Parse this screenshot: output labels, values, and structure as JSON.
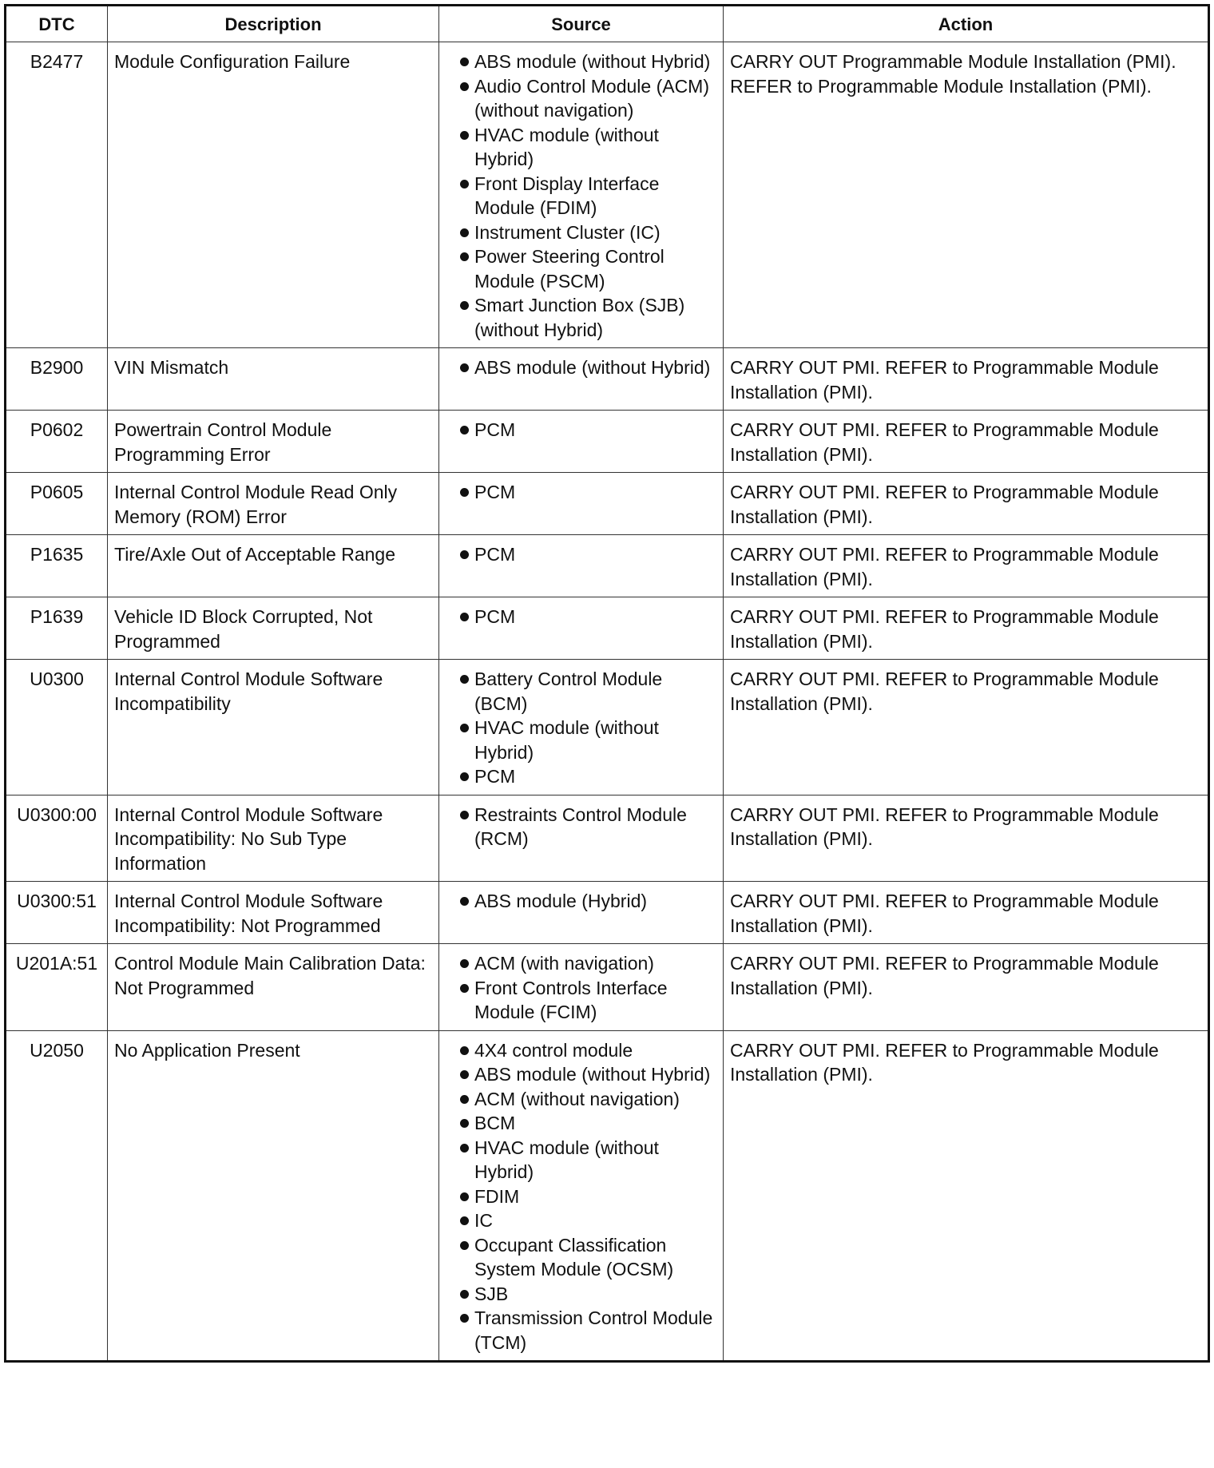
{
  "headers": [
    "DTC",
    "Description",
    "Source",
    "Action"
  ],
  "rows": [
    {
      "dtc": "B2477",
      "description": "Module Configuration Failure",
      "source": [
        "ABS module (without Hybrid)",
        "Audio Control Module (ACM) (without navigation)",
        "HVAC module (without Hybrid)",
        "Front Display Interface Module (FDIM)",
        "Instrument Cluster (IC)",
        "Power Steering Control Module (PSCM)",
        "Smart Junction Box (SJB) (without Hybrid)"
      ],
      "action": "CARRY OUT Programmable Module Installation (PMI). REFER to Programmable Module Installation (PMI)."
    },
    {
      "dtc": "B2900",
      "description": "VIN Mismatch",
      "source": [
        "ABS module (without Hybrid)"
      ],
      "action": "CARRY OUT PMI. REFER to Programmable Module Installation (PMI)."
    },
    {
      "dtc": "P0602",
      "description": "Powertrain Control Module Programming Error",
      "source": [
        "PCM"
      ],
      "action": "CARRY OUT PMI. REFER to Programmable Module Installation (PMI)."
    },
    {
      "dtc": "P0605",
      "description": "Internal Control Module Read Only Memory (ROM) Error",
      "source": [
        "PCM"
      ],
      "action": "CARRY OUT PMI. REFER to Programmable Module Installation (PMI)."
    },
    {
      "dtc": "P1635",
      "description": "Tire/Axle Out of Acceptable Range",
      "source": [
        "PCM"
      ],
      "action": "CARRY OUT PMI. REFER to Programmable Module Installation (PMI)."
    },
    {
      "dtc": "P1639",
      "description": "Vehicle ID Block Corrupted, Not Programmed",
      "source": [
        "PCM"
      ],
      "action": "CARRY OUT PMI. REFER to Programmable Module Installation (PMI)."
    },
    {
      "dtc": "U0300",
      "description": "Internal Control Module Software Incompatibility",
      "source": [
        "Battery Control Module (BCM)",
        "HVAC module (without Hybrid)",
        "PCM"
      ],
      "action": "CARRY OUT PMI. REFER to Programmable Module Installation (PMI)."
    },
    {
      "dtc": "U0300:00",
      "description": "Internal Control Module Software Incompatibility: No Sub Type Information",
      "source": [
        "Restraints Control Module (RCM)"
      ],
      "action": "CARRY OUT PMI. REFER to Programmable Module Installation (PMI)."
    },
    {
      "dtc": "U0300:51",
      "description": "Internal Control Module Software Incompatibility: Not Programmed",
      "source": [
        "ABS module (Hybrid)"
      ],
      "action": "CARRY OUT PMI. REFER to Programmable Module Installation (PMI)."
    },
    {
      "dtc": "U201A:51",
      "description": "Control Module Main Calibration Data: Not Programmed",
      "source": [
        "ACM (with navigation)",
        "Front Controls Interface Module (FCIM)"
      ],
      "action": "CARRY OUT PMI. REFER to Programmable Module Installation (PMI)."
    },
    {
      "dtc": "U2050",
      "description": "No Application Present",
      "source": [
        "4X4 control module",
        "ABS module (without Hybrid)",
        "ACM (without navigation)",
        "BCM",
        "HVAC module (without Hybrid)",
        "FDIM",
        "IC",
        "Occupant Classification System Module (OCSM)",
        "SJB",
        "Transmission Control Module (TCM)"
      ],
      "action": "CARRY OUT PMI. REFER to Programmable Module Installation (PMI)."
    }
  ]
}
